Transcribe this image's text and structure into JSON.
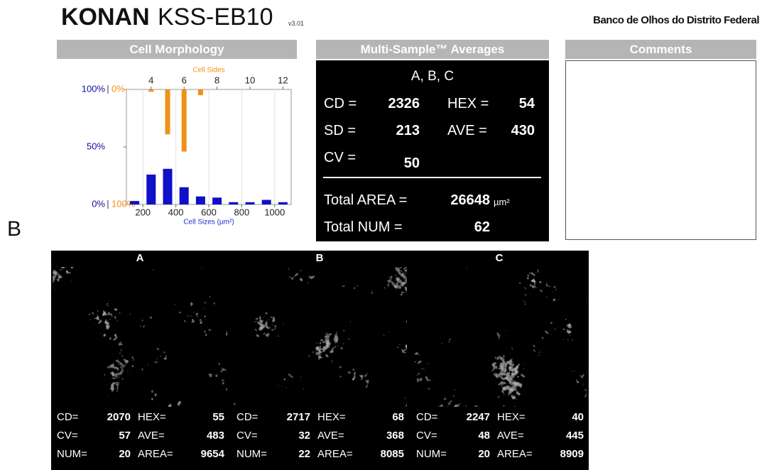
{
  "header": {
    "brand": "KONAN",
    "model": "KSS-EB10",
    "version": "v3.01",
    "institution": "Banco de Olhos do Distrito Federal"
  },
  "figure_label": "B",
  "panels": {
    "morphology": "Cell Morphology",
    "averages": "Multi-Sample™ Averages",
    "comments": "Comments"
  },
  "chart_data": {
    "type": "bar",
    "xlabel": "Cell Sizes (µm²)",
    "x2label": "Cell Sides",
    "xlim": [
      100,
      1100
    ],
    "xticks": [
      200,
      400,
      600,
      800,
      1000
    ],
    "x2lim": [
      2.5,
      12.5
    ],
    "x2ticks": [
      4,
      6,
      8,
      10,
      12
    ],
    "ylim": [
      0,
      100
    ],
    "yticks": [
      {
        "value": 0,
        "label": "0%"
      },
      {
        "value": 50,
        "label": "50%"
      },
      {
        "value": 100,
        "label": "100%"
      }
    ],
    "y2lim": [
      0,
      100
    ],
    "y2ticks": [
      {
        "value": 0,
        "label": "0%"
      },
      {
        "value": 100,
        "label": "100%"
      }
    ],
    "y2_inverted": true,
    "grid": true,
    "series": [
      {
        "color": "#1010c8",
        "x": [
          150,
          250,
          350,
          450,
          550,
          650,
          750,
          850,
          950,
          1050
        ],
        "values": [
          3,
          26,
          31,
          15,
          7,
          6,
          2,
          2,
          4,
          2
        ]
      },
      {
        "color": "#f0901a",
        "axis": "y2",
        "x": [
          4,
          5,
          6,
          7
        ],
        "values": [
          2,
          39,
          54,
          5
        ]
      }
    ]
  },
  "averages": {
    "samples": "A, B, C",
    "rows": [
      [
        {
          "label": "CD =",
          "value": 2326
        },
        {
          "label": "HEX =",
          "value": 54
        }
      ],
      [
        {
          "label": "SD =",
          "value": 213
        },
        {
          "label": "AVE =",
          "value": 430
        }
      ],
      [
        {
          "label": "CV =",
          "value": 50
        }
      ]
    ],
    "totals": [
      {
        "label": "Total AREA =",
        "value": 26648,
        "unit": "µm²"
      },
      {
        "label": "Total NUM =",
        "value": 62
      }
    ]
  },
  "samples": [
    {
      "title": "A",
      "stats": [
        [
          {
            "label": "CD=",
            "value": 2070
          },
          {
            "label": "HEX=",
            "value": 55
          }
        ],
        [
          {
            "label": "CV=",
            "value": 57
          },
          {
            "label": "AVE=",
            "value": 483
          }
        ],
        [
          {
            "label": "NUM=",
            "value": 20
          },
          {
            "label": "AREA=",
            "value": 9654
          }
        ]
      ]
    },
    {
      "title": "B",
      "stats": [
        [
          {
            "label": "CD=",
            "value": 2717
          },
          {
            "label": "HEX=",
            "value": 68
          }
        ],
        [
          {
            "label": "CV=",
            "value": 32
          },
          {
            "label": "AVE=",
            "value": 368
          }
        ],
        [
          {
            "label": "NUM=",
            "value": 22
          },
          {
            "label": "AREA=",
            "value": 8085
          }
        ]
      ]
    },
    {
      "title": "C",
      "stats": [
        [
          {
            "label": "CD=",
            "value": 2247
          },
          {
            "label": "HEX=",
            "value": 40
          }
        ],
        [
          {
            "label": "CV=",
            "value": 48
          },
          {
            "label": "AVE=",
            "value": 445
          }
        ],
        [
          {
            "label": "NUM=",
            "value": 20
          },
          {
            "label": "AREA=",
            "value": 8909
          }
        ]
      ]
    }
  ]
}
